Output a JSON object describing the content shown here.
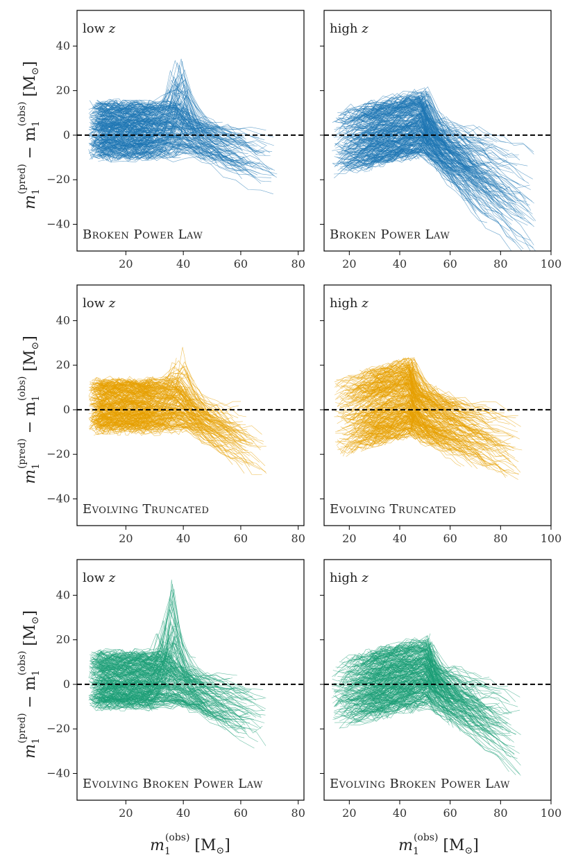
{
  "figure": {
    "ylabel": {
      "main": "m",
      "sub": "1",
      "sup_pred": "(pred)",
      "minus": " − m",
      "sup_obs": "(obs)",
      "unit": " [M",
      "unit_sub": "⊙",
      "close": "]"
    },
    "xlabel": {
      "main": "m",
      "sub": "1",
      "sup_obs": "(obs)",
      "unit": " [M",
      "unit_sub": "⊙",
      "close": "]"
    }
  },
  "chart_data": [
    {
      "type": "line",
      "row": 0,
      "col": 0,
      "panel_label": "low z",
      "model": "Broken Power Law",
      "color": "#1f77b4",
      "xlim": [
        3,
        82
      ],
      "ylim": [
        -52,
        56
      ],
      "xticks": [
        20,
        40,
        60,
        80
      ],
      "yticks": [
        -40,
        -20,
        0,
        20,
        40
      ],
      "reference_line_y": 0,
      "n_traces": 300,
      "envelope": {
        "x_range": [
          7,
          73
        ],
        "bulk_y_range": [
          -15,
          15
        ],
        "peak_x": 40,
        "peak_y": 44,
        "tail_min_y": -18
      }
    },
    {
      "type": "line",
      "row": 0,
      "col": 1,
      "panel_label": "high z",
      "model": "Broken Power Law",
      "color": "#1f77b4",
      "xlim": [
        10,
        100
      ],
      "ylim": [
        -52,
        56
      ],
      "xticks": [
        20,
        40,
        60,
        80,
        100
      ],
      "yticks": [
        -40,
        -20,
        0,
        20,
        40
      ],
      "reference_line_y": 0,
      "n_traces": 300,
      "envelope": {
        "x_range": [
          13,
          94
        ],
        "bulk_y_range": [
          -15,
          20
        ],
        "peak_x": 50,
        "peak_y": 32,
        "tail_min_y": -47
      }
    },
    {
      "type": "line",
      "row": 1,
      "col": 0,
      "panel_label": "low z",
      "model": "Evolving Truncated",
      "color": "#e69f00",
      "xlim": [
        3,
        82
      ],
      "ylim": [
        -52,
        56
      ],
      "xticks": [
        20,
        40,
        60,
        80
      ],
      "yticks": [
        -40,
        -20,
        0,
        20,
        40
      ],
      "reference_line_y": 0,
      "n_traces": 300,
      "envelope": {
        "x_range": [
          7,
          69
        ],
        "bulk_y_range": [
          -13,
          15
        ],
        "peak_x": 40,
        "peak_y": 29,
        "tail_min_y": -25
      }
    },
    {
      "type": "line",
      "row": 1,
      "col": 1,
      "panel_label": "high z",
      "model": "Evolving Truncated",
      "color": "#e69f00",
      "xlim": [
        10,
        100
      ],
      "ylim": [
        -52,
        56
      ],
      "xticks": [
        20,
        40,
        60,
        80,
        100
      ],
      "yticks": [
        -40,
        -20,
        0,
        20,
        40
      ],
      "reference_line_y": 0,
      "n_traces": 300,
      "envelope": {
        "x_range": [
          14,
          89
        ],
        "bulk_y_range": [
          -16,
          25
        ],
        "peak_x": 45,
        "peak_y": 28,
        "tail_min_y": -26
      }
    },
    {
      "type": "line",
      "row": 2,
      "col": 0,
      "panel_label": "low z",
      "model": "Evolving Broken Power Law",
      "color": "#1b9e77",
      "xlim": [
        3,
        82
      ],
      "ylim": [
        -52,
        56
      ],
      "xticks": [
        20,
        40,
        60,
        80
      ],
      "yticks": [
        -40,
        -20,
        0,
        20,
        40
      ],
      "reference_line_y": 0,
      "n_traces": 300,
      "envelope": {
        "x_range": [
          7,
          69
        ],
        "bulk_y_range": [
          -15,
          15
        ],
        "peak_x": 37,
        "peak_y": 51,
        "tail_min_y": -20
      }
    },
    {
      "type": "line",
      "row": 2,
      "col": 1,
      "panel_label": "high z",
      "model": "Evolving Broken Power Law",
      "color": "#1b9e77",
      "xlim": [
        10,
        100
      ],
      "ylim": [
        -52,
        56
      ],
      "xticks": [
        20,
        40,
        60,
        80,
        100
      ],
      "yticks": [
        -40,
        -20,
        0,
        20,
        40
      ],
      "reference_line_y": 0,
      "n_traces": 300,
      "envelope": {
        "x_range": [
          13,
          89
        ],
        "bulk_y_range": [
          -17,
          20
        ],
        "peak_x": 52,
        "peak_y": 28,
        "tail_min_y": -32
      }
    }
  ]
}
